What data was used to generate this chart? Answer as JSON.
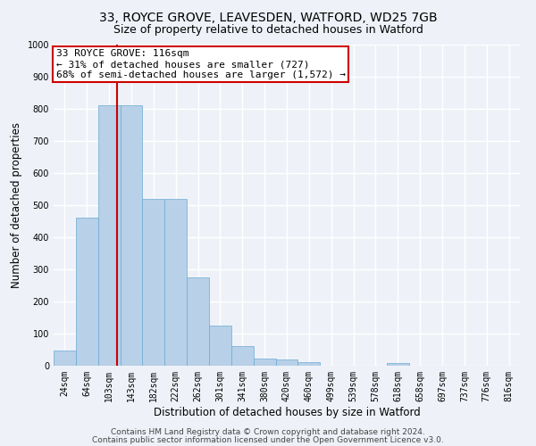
{
  "title_line1": "33, ROYCE GROVE, LEAVESDEN, WATFORD, WD25 7GB",
  "title_line2": "Size of property relative to detached houses in Watford",
  "xlabel": "Distribution of detached houses by size in Watford",
  "ylabel": "Number of detached properties",
  "categories": [
    "24sqm",
    "64sqm",
    "103sqm",
    "143sqm",
    "182sqm",
    "222sqm",
    "262sqm",
    "301sqm",
    "341sqm",
    "380sqm",
    "420sqm",
    "460sqm",
    "499sqm",
    "539sqm",
    "578sqm",
    "618sqm",
    "658sqm",
    "697sqm",
    "737sqm",
    "776sqm",
    "816sqm"
  ],
  "values": [
    47,
    460,
    810,
    810,
    520,
    520,
    275,
    125,
    60,
    22,
    20,
    11,
    0,
    0,
    0,
    8,
    0,
    0,
    0,
    0,
    0
  ],
  "bar_color": "#b8d0e8",
  "bar_edge_color": "#6aaad4",
  "vline_pos": 2.35,
  "vline_color": "#cc0000",
  "annotation_text": "33 ROYCE GROVE: 116sqm\n← 31% of detached houses are smaller (727)\n68% of semi-detached houses are larger (1,572) →",
  "annotation_box_color": "#ffffff",
  "annotation_box_edge_color": "#cc0000",
  "ylim": [
    0,
    1000
  ],
  "yticks": [
    0,
    100,
    200,
    300,
    400,
    500,
    600,
    700,
    800,
    900,
    1000
  ],
  "footer_line1": "Contains HM Land Registry data © Crown copyright and database right 2024.",
  "footer_line2": "Contains public sector information licensed under the Open Government Licence v3.0.",
  "bg_color": "#eef2f8",
  "grid_color": "#ffffff",
  "title_fontsize": 10,
  "subtitle_fontsize": 9,
  "axis_label_fontsize": 8.5,
  "tick_fontsize": 7,
  "annotation_fontsize": 8,
  "footer_fontsize": 6.5
}
